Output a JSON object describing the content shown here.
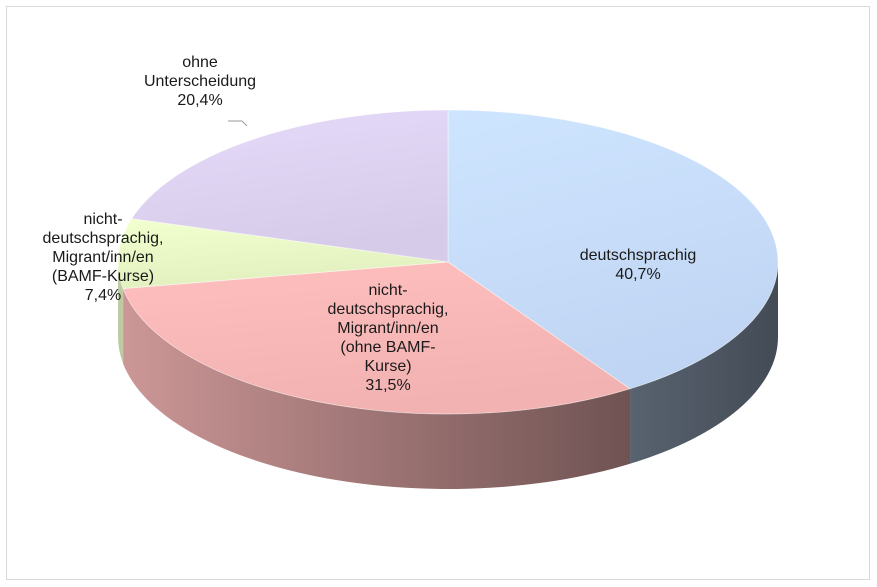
{
  "chart_data": {
    "type": "pie",
    "style": "3d",
    "slices": [
      {
        "name": "deutschsprachig",
        "label_text": "deutschsprachig\n40,7%",
        "value": 40.7,
        "color": "#c6dcfb"
      },
      {
        "name": "nicht-deutschsprachig, Migrant/inn/en (ohne BAMF-Kurse)",
        "label_text": "nicht-\ndeutschsprachig,\nMigrant/inn/en\n(ohne BAMF-\nKurse)\n31,5%",
        "value": 31.5,
        "color": "#fab8b8"
      },
      {
        "name": "nicht-deutschsprachig, Migrant/inn/en (BAMF-Kurse)",
        "label_text": "nicht-\ndeutschsprachig,\nMigrant/inn/en\n(BAMF-Kurse)\n7,4%",
        "value": 7.4,
        "color": "#e9f7c6"
      },
      {
        "name": "ohne Unterscheidung",
        "label_text": "ohne\nUnterscheidung\n20,4%",
        "value": 20.4,
        "color": "#ddd2f0"
      }
    ]
  }
}
